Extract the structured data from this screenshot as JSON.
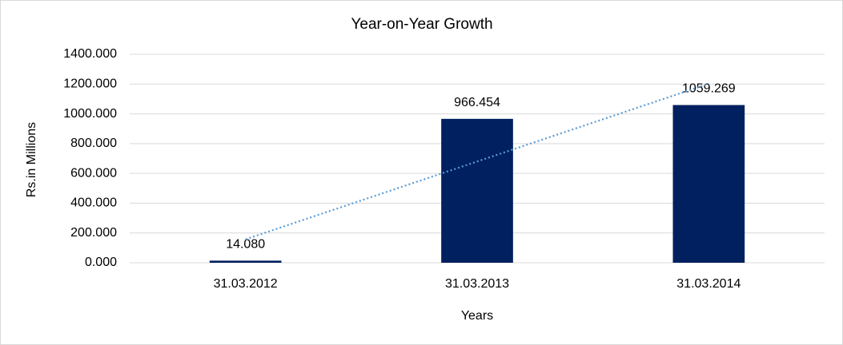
{
  "chart_data": {
    "type": "bar",
    "title": "Year-on-Year Growth",
    "x_label": "Years",
    "y_label": "Rs.in Millions",
    "categories": [
      "31.03.2012",
      "31.03.2013",
      "31.03.2014"
    ],
    "values": [
      14.08,
      966.454,
      1059.269
    ],
    "value_labels": [
      "14.080",
      "966.454",
      "1059.269"
    ],
    "color": "#002060",
    "trendline": "linear",
    "trendline_color": "#5b9bd5",
    "ylim": [
      0,
      1400
    ],
    "yticks": [
      {
        "value": 0,
        "label": "0.000"
      },
      {
        "value": 200,
        "label": "200.000"
      },
      {
        "value": 400,
        "label": "400.000"
      },
      {
        "value": 600,
        "label": "600.000"
      },
      {
        "value": 800,
        "label": "800.000"
      },
      {
        "value": 1000,
        "label": "1000.000"
      },
      {
        "value": 1200,
        "label": "1200.000"
      },
      {
        "value": 1400,
        "label": "1400.000"
      }
    ],
    "grid": true
  }
}
